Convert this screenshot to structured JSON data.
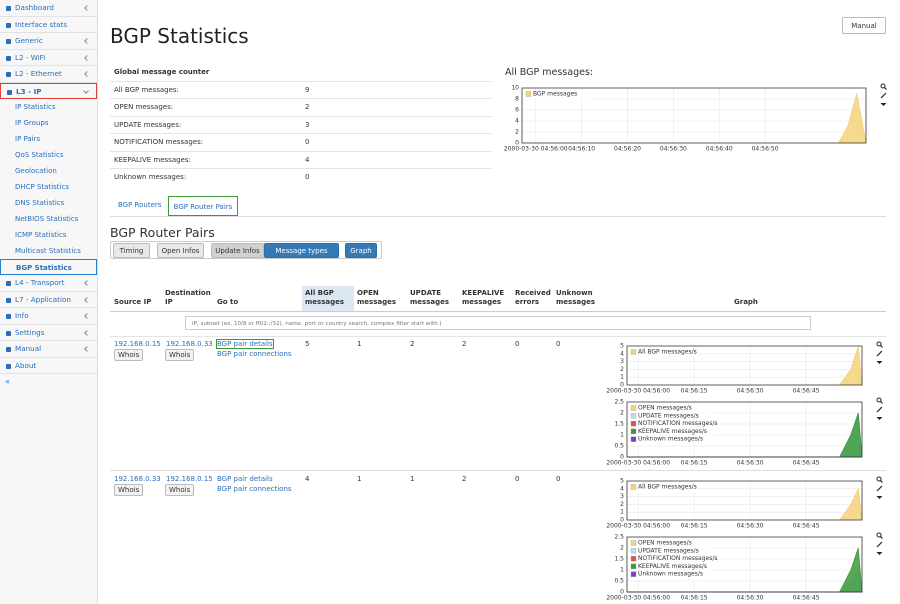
{
  "sidebar": {
    "menu": [
      {
        "label": "Dashboard",
        "submenu_toggle": true
      },
      {
        "label": "Interface stats",
        "submenu_toggle": false
      },
      {
        "label": "Generic",
        "submenu_toggle": true
      },
      {
        "label": "L2 - WiFi",
        "submenu_toggle": true
      },
      {
        "label": "L2 - Ethernet",
        "submenu_toggle": true
      },
      {
        "label": "L3 - IP",
        "submenu_toggle": true,
        "expanded": true,
        "submenu": [
          {
            "label": "IP Statistics"
          },
          {
            "label": "IP Groups"
          },
          {
            "label": "IP Pairs"
          },
          {
            "label": "QoS Statistics"
          },
          {
            "label": "Geolocation"
          },
          {
            "label": "DHCP Statistics"
          },
          {
            "label": "DNS Statistics"
          },
          {
            "label": "NetBIOS Statistics"
          },
          {
            "label": "ICMP Statistics"
          },
          {
            "label": "Multicast Statistics"
          },
          {
            "label": "BGP Statistics",
            "current": true
          }
        ]
      },
      {
        "label": "L4 - Transport",
        "submenu_toggle": true
      },
      {
        "label": "L7 - Application",
        "submenu_toggle": true
      },
      {
        "label": "Info",
        "submenu_toggle": true
      },
      {
        "label": "Settings",
        "submenu_toggle": true
      },
      {
        "label": "Manual",
        "submenu_toggle": true
      },
      {
        "label": "About",
        "submenu_toggle": false
      }
    ],
    "collapse": "«"
  },
  "header": {
    "title": "BGP Statistics",
    "manual_button": "Manual"
  },
  "counter": {
    "title": "Global message counter",
    "rows": [
      [
        "All BGP messages:",
        9
      ],
      [
        "OPEN messages:",
        2
      ],
      [
        "UPDATE messages:",
        3
      ],
      [
        "NOTIFICATION messages:",
        0
      ],
      [
        "KEEPALIVE messages:",
        4
      ],
      [
        "Unknown messages:",
        0
      ]
    ]
  },
  "overview": {
    "title": "All BGP messages:",
    "chart": {
      "type": "area",
      "xlim": [
        "04:55:57",
        "04:57:12"
      ],
      "ylim": [
        0,
        10
      ],
      "yticks": [
        0,
        2,
        4,
        6,
        8,
        10
      ],
      "xticks": [
        {
          "value": "04:56:00",
          "label": "2000-03-30 04:56:00"
        },
        "04:56:10",
        "04:56:20",
        "04:56:30",
        "04:56:40",
        "04:56:50"
      ],
      "x": [
        "04:55:57",
        "04:57:06",
        "04:57:08",
        "04:57:10",
        "04:57:12"
      ],
      "series": [
        {
          "name": "BGP messages",
          "color": "#f5d27a",
          "values": [
            0,
            0,
            3,
            9,
            0
          ]
        }
      ]
    }
  },
  "tabs": [
    "BGP Routers",
    "BGP Router Pairs"
  ],
  "section_title": "BGP Router Pairs",
  "buttons": [
    "Timing",
    "Open Infos",
    "Update Infos",
    "Message types",
    "Graph"
  ],
  "table": {
    "columns": [
      "Source IP",
      "Destination IP",
      "Go to",
      "All BGP messages",
      "OPEN messages",
      "UPDATE messages",
      "KEEPALIVE messages",
      "Received errors",
      "Unknown messages",
      "Graph"
    ],
    "filter_placeholder": "IP, subnet (ex. 10/8 or ff02::/32), name, port or country search, complex filter start with (",
    "rows": [
      {
        "source": "192.168.0.15",
        "source_action": "Whois",
        "destination": "192.168.0.33",
        "destination_action": "Whois",
        "goto": [
          "BGP pair details",
          "BGP pair connections"
        ],
        "counts": [
          5,
          1,
          2,
          2,
          0,
          0
        ],
        "charts": [
          {
            "type": "area",
            "xlim": [
              "04:55:57",
              "04:57:00"
            ],
            "ylim": [
              0,
              5
            ],
            "yticks": [
              0,
              1,
              2,
              3,
              4,
              5
            ],
            "xticks": [
              {
                "value": "04:56:00",
                "label": "2000-03-30 04:56:00"
              },
              "04:56:15",
              "04:56:30",
              "04:56:45"
            ],
            "x": [
              "04:55:57",
              "04:56:54",
              "04:56:57",
              "04:56:59",
              "04:57:00"
            ],
            "series": [
              {
                "name": "All BGP messages/s",
                "color": "#f5d27a",
                "values": [
                  0,
                  0,
                  2,
                  5,
                  0
                ]
              }
            ]
          },
          {
            "type": "area",
            "xlim": [
              "04:55:57",
              "04:57:00"
            ],
            "ylim": [
              0,
              2.5
            ],
            "yticks": [
              0,
              0.5,
              1,
              1.5,
              2,
              2.5
            ],
            "xticks": [
              {
                "value": "04:56:00",
                "label": "2000-03-30 04:56:00"
              },
              "04:56:15",
              "04:56:30",
              "04:56:45"
            ],
            "x": [
              "04:55:57",
              "04:56:54",
              "04:56:57",
              "04:56:59",
              "04:57:00"
            ],
            "series": [
              {
                "name": "OPEN messages/s",
                "color": "#f5d27a",
                "values": [
                  0,
                  0,
                  0.5,
                  1,
                  0
                ]
              },
              {
                "name": "UPDATE messages/s",
                "color": "#b9dcf2",
                "values": [
                  0,
                  0,
                  1,
                  2,
                  0
                ]
              },
              {
                "name": "NOTIFICATION messages/s",
                "color": "#d9534f",
                "values": [
                  0,
                  0,
                  0,
                  0,
                  0
                ]
              },
              {
                "name": "KEEPALIVE messages/s",
                "color": "#3c9a3c",
                "values": [
                  0,
                  0,
                  1,
                  2,
                  0
                ]
              },
              {
                "name": "Unknown messages/s",
                "color": "#7d3fc4",
                "values": [
                  0,
                  0,
                  0,
                  0,
                  0
                ]
              }
            ]
          }
        ]
      },
      {
        "source": "192.168.0.33",
        "source_action": "Whois",
        "destination": "192.168.0.15",
        "destination_action": "Whois",
        "goto": [
          "BGP pair details",
          "BGP pair connections"
        ],
        "counts": [
          4,
          1,
          1,
          2,
          0,
          0
        ],
        "charts": [
          {
            "type": "area",
            "xlim": [
              "04:55:57",
              "04:57:00"
            ],
            "ylim": [
              0,
              5
            ],
            "yticks": [
              0,
              1,
              2,
              3,
              4,
              5
            ],
            "xticks": [
              {
                "value": "04:56:00",
                "label": "2000-03-30 04:56:00"
              },
              "04:56:15",
              "04:56:30",
              "04:56:45"
            ],
            "x": [
              "04:55:57",
              "04:56:54",
              "04:56:57",
              "04:56:59",
              "04:57:00"
            ],
            "series": [
              {
                "name": "All BGP messages/s",
                "color": "#f5d27a",
                "values": [
                  0,
                  0,
                  2,
                  4,
                  0
                ]
              }
            ]
          },
          {
            "type": "area",
            "xlim": [
              "04:55:57",
              "04:57:00"
            ],
            "ylim": [
              0,
              2.5
            ],
            "yticks": [
              0,
              0.5,
              1,
              1.5,
              2,
              2.5
            ],
            "xticks": [
              {
                "value": "04:56:00",
                "label": "2000-03-30 04:56:00"
              },
              "04:56:15",
              "04:56:30",
              "04:56:45"
            ],
            "x": [
              "04:55:57",
              "04:56:54",
              "04:56:57",
              "04:56:59",
              "04:57:00"
            ],
            "series": [
              {
                "name": "OPEN messages/s",
                "color": "#f5d27a",
                "values": [
                  0,
                  0,
                  0.5,
                  1,
                  0
                ]
              },
              {
                "name": "UPDATE messages/s",
                "color": "#b9dcf2",
                "values": [
                  0,
                  0,
                  0.5,
                  1,
                  0
                ]
              },
              {
                "name": "NOTIFICATION messages/s",
                "color": "#d9534f",
                "values": [
                  0,
                  0,
                  0,
                  0,
                  0
                ]
              },
              {
                "name": "KEEPALIVE messages/s",
                "color": "#3c9a3c",
                "values": [
                  0,
                  0,
                  1,
                  2,
                  0
                ]
              },
              {
                "name": "Unknown messages/s",
                "color": "#7d3fc4",
                "values": [
                  0,
                  0,
                  0,
                  0,
                  0
                ]
              }
            ]
          }
        ]
      }
    ]
  }
}
